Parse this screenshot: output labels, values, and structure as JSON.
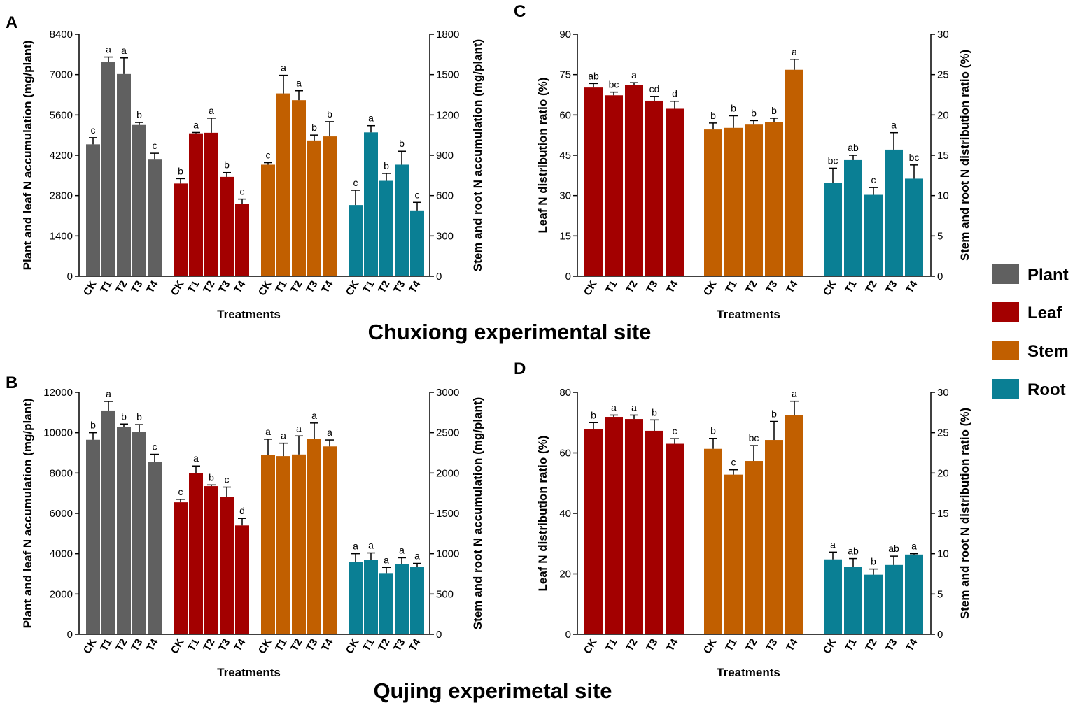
{
  "colors": {
    "Plant": "#606060",
    "Leaf": "#a30000",
    "Stem": "#c15f00",
    "Root": "#0a7f94"
  },
  "legend": [
    {
      "name": "Plant",
      "color": "#606060"
    },
    {
      "name": "Leaf",
      "color": "#a30000"
    },
    {
      "name": "Stem",
      "color": "#c15f00"
    },
    {
      "name": "Root",
      "color": "#0a7f94"
    }
  ],
  "sites": {
    "chuxiong": "Chuxiong experimental site",
    "qujing": "Qujing experimetal site"
  },
  "chart_data": [
    {
      "panel": "A",
      "type": "bar",
      "site": "Chuxiong experimental site",
      "xlabel": "Treatments",
      "ylabel_left": "Plant and leaf N accumulation (mg/plant)",
      "ylabel_right": "Stem and root N accumulation (mg/plant)",
      "ylim_left": [
        0,
        8400
      ],
      "ylim_right": [
        0,
        1800
      ],
      "yticks_left": [
        "0",
        "1400",
        "2800",
        "4200",
        "5600",
        "7000",
        "8400"
      ],
      "yticks_right": [
        "0",
        "300",
        "600",
        "900",
        "1200",
        "1500",
        "1800"
      ],
      "categories": [
        "CK",
        "T1",
        "T2",
        "T3",
        "T4"
      ],
      "series": [
        {
          "name": "Plant",
          "axis": "left",
          "values": [
            4580,
            7450,
            7020,
            5250,
            4050
          ],
          "errors": [
            230,
            160,
            560,
            90,
            220
          ],
          "letters": [
            "c",
            "a",
            "a",
            "b",
            "c"
          ]
        },
        {
          "name": "Leaf",
          "axis": "left",
          "values": [
            3220,
            4960,
            4980,
            3450,
            2510
          ],
          "errors": [
            170,
            30,
            510,
            150,
            170
          ],
          "letters": [
            "b",
            "a",
            "a",
            "b",
            "c"
          ]
        },
        {
          "name": "Stem",
          "axis": "right",
          "values": [
            830,
            1360,
            1310,
            1010,
            1040
          ],
          "errors": [
            15,
            135,
            70,
            40,
            110
          ],
          "letters": [
            "c",
            "a",
            "a",
            "b",
            "b"
          ]
        },
        {
          "name": "Root",
          "axis": "right",
          "values": [
            530,
            1070,
            710,
            830,
            490
          ],
          "errors": [
            110,
            50,
            55,
            100,
            60
          ],
          "letters": [
            "c",
            "a",
            "b",
            "b",
            "c"
          ]
        }
      ]
    },
    {
      "panel": "B",
      "type": "bar",
      "site": "Qujing experimetal site",
      "xlabel": "Treatments",
      "ylabel_left": "Plant and leaf N accumulation (mg/plant)",
      "ylabel_right": "Stem and root N accumulation (mg/plant)",
      "ylim_left": [
        0,
        12000
      ],
      "ylim_right": [
        0,
        3000
      ],
      "yticks_left": [
        "0",
        "2000",
        "4000",
        "6000",
        "8000",
        "10000",
        "12000"
      ],
      "yticks_right": [
        "0",
        "500",
        "1000",
        "1500",
        "2000",
        "2500",
        "3000"
      ],
      "categories": [
        "CK",
        "T1",
        "T2",
        "T3",
        "T4"
      ],
      "series": [
        {
          "name": "Plant",
          "axis": "left",
          "values": [
            9650,
            11100,
            10300,
            10050,
            8550
          ],
          "errors": [
            350,
            450,
            130,
            350,
            380
          ],
          "letters": [
            "b",
            "a",
            "b",
            "b",
            "c"
          ]
        },
        {
          "name": "Leaf",
          "axis": "left",
          "values": [
            6550,
            8000,
            7350,
            6800,
            5400
          ],
          "errors": [
            150,
            350,
            60,
            500,
            350
          ],
          "letters": [
            "c",
            "a",
            "b",
            "c",
            "d"
          ]
        },
        {
          "name": "Stem",
          "axis": "right",
          "values": [
            2220,
            2210,
            2230,
            2420,
            2330
          ],
          "errors": [
            200,
            160,
            230,
            200,
            80
          ],
          "letters": [
            "a",
            "a",
            "a",
            "a",
            "a"
          ]
        },
        {
          "name": "Root",
          "axis": "right",
          "values": [
            900,
            920,
            760,
            870,
            840
          ],
          "errors": [
            100,
            90,
            70,
            80,
            40
          ],
          "letters": [
            "a",
            "a",
            "a",
            "a",
            "a"
          ]
        }
      ]
    },
    {
      "panel": "C",
      "type": "bar",
      "site": "Chuxiong experimental site",
      "xlabel": "Treatments",
      "ylabel_left": "Leaf N distribution ratio (%)",
      "ylabel_right": "Stem and root N distribution ratio (%)",
      "ylim_left": [
        0,
        90
      ],
      "ylim_right": [
        0,
        30
      ],
      "yticks_left": [
        "0",
        "15",
        "30",
        "45",
        "60",
        "75",
        "90"
      ],
      "yticks_right": [
        "0",
        "5",
        "10",
        "15",
        "20",
        "25",
        "30"
      ],
      "categories": [
        "CK",
        "T1",
        "T2",
        "T3",
        "T4"
      ],
      "series": [
        {
          "name": "Leaf",
          "axis": "left",
          "values": [
            70.2,
            67.3,
            71.1,
            65.3,
            62.3
          ],
          "errors": [
            1.5,
            1.2,
            0.9,
            1.6,
            2.8
          ],
          "letters": [
            "ab",
            "bc",
            "a",
            "cd",
            "d"
          ]
        },
        {
          "name": "Stem",
          "axis": "right",
          "values": [
            18.2,
            18.4,
            18.8,
            19.1,
            25.6
          ],
          "errors": [
            0.8,
            1.5,
            0.5,
            0.5,
            1.3
          ],
          "letters": [
            "b",
            "b",
            "b",
            "b",
            "a"
          ]
        },
        {
          "name": "Root",
          "axis": "right",
          "values": [
            11.6,
            14.4,
            10.1,
            15.7,
            12.1
          ],
          "errors": [
            1.8,
            0.6,
            0.9,
            2.1,
            1.7
          ],
          "letters": [
            "bc",
            "ab",
            "c",
            "a",
            "bc"
          ]
        }
      ]
    },
    {
      "panel": "D",
      "type": "bar",
      "site": "Qujing experimetal site",
      "xlabel": "Treatments",
      "ylabel_left": "Leaf N distribution ratio (%)",
      "ylabel_right": "Stem and root N distribution ratio (%)",
      "ylim_left": [
        0,
        80
      ],
      "ylim_right": [
        0,
        30
      ],
      "yticks_left": [
        "0",
        "20",
        "40",
        "60",
        "80"
      ],
      "yticks_right": [
        "0",
        "5",
        "10",
        "15",
        "20",
        "25",
        "30"
      ],
      "categories": [
        "CK",
        "T1",
        "T2",
        "T3",
        "T4"
      ],
      "series": [
        {
          "name": "Leaf",
          "axis": "left",
          "values": [
            67.8,
            71.9,
            71.2,
            67.3,
            63.0
          ],
          "errors": [
            2.2,
            0.6,
            1.3,
            3.6,
            1.7
          ],
          "letters": [
            "b",
            "a",
            "a",
            "b",
            "c"
          ]
        },
        {
          "name": "Stem",
          "axis": "right",
          "values": [
            23.0,
            19.8,
            21.5,
            24.1,
            27.2
          ],
          "errors": [
            1.3,
            0.6,
            1.9,
            2.3,
            1.7
          ],
          "letters": [
            "b",
            "c",
            "bc",
            "b",
            "a"
          ]
        },
        {
          "name": "Root",
          "axis": "right",
          "values": [
            9.3,
            8.4,
            7.4,
            8.6,
            9.9
          ],
          "errors": [
            0.9,
            1.0,
            0.7,
            1.1,
            0.1
          ],
          "letters": [
            "a",
            "ab",
            "b",
            "ab",
            "a"
          ]
        }
      ]
    }
  ]
}
